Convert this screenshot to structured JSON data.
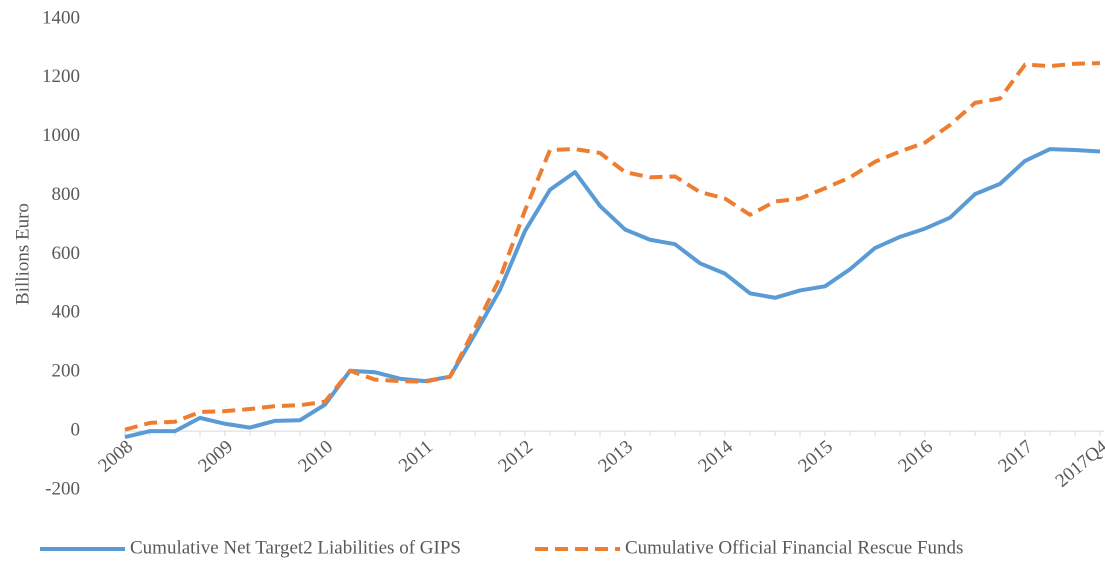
{
  "chart_data": {
    "type": "line",
    "y_label": "Billions Euro",
    "categories": [
      "2008",
      null,
      null,
      null,
      "2009",
      null,
      null,
      null,
      "2010",
      null,
      null,
      null,
      "2011",
      null,
      null,
      null,
      "2012",
      null,
      null,
      null,
      "2013",
      null,
      null,
      null,
      "2014",
      null,
      null,
      null,
      "2015",
      null,
      null,
      null,
      "2016",
      null,
      null,
      null,
      "2017",
      null,
      null,
      "2017Q4"
    ],
    "series": [
      {
        "name": "Cumulative Net Target2 Liabilities of GIPS",
        "color": "#5b9bd5",
        "dashed": false,
        "values": [
          -20,
          0,
          0,
          45,
          25,
          12,
          35,
          37,
          90,
          205,
          200,
          178,
          170,
          185,
          330,
          480,
          680,
          820,
          880,
          765,
          685,
          650,
          635,
          570,
          535,
          468,
          453,
          478,
          492,
          550,
          622,
          660,
          688,
          725,
          805,
          840,
          918,
          958,
          955,
          950
        ]
      },
      {
        "name": "Cumulative Official Financial Rescue Funds",
        "color": "#ed7d31",
        "dashed": true,
        "values": [
          5,
          28,
          32,
          65,
          68,
          75,
          85,
          88,
          100,
          205,
          175,
          170,
          168,
          185,
          350,
          520,
          750,
          955,
          958,
          945,
          880,
          862,
          865,
          812,
          790,
          735,
          780,
          790,
          825,
          862,
          915,
          950,
          980,
          1040,
          1115,
          1130,
          1245,
          1240,
          1248,
          1250
        ]
      }
    ],
    "ylim": [
      -200,
      1400
    ],
    "yticks": [
      -200,
      0,
      200,
      400,
      600,
      800,
      1000,
      1200,
      1400
    ],
    "grid": false,
    "legend": "bottom"
  }
}
